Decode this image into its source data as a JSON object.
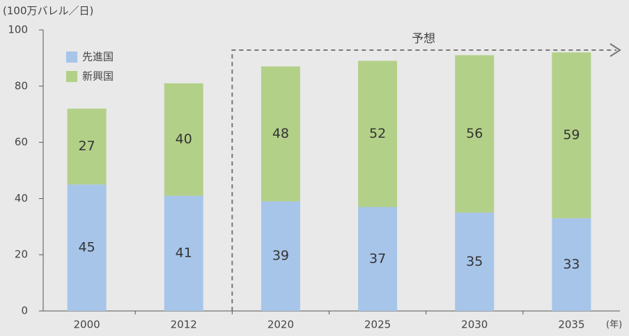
{
  "chart_data": {
    "type": "bar",
    "stacked": true,
    "y_unit": "(100万バレル／日)",
    "x_unit": "(年)",
    "annotation": "予想",
    "categories": [
      "2000",
      "2012",
      "2020",
      "2025",
      "2030",
      "2035"
    ],
    "series": [
      {
        "name": "先進国",
        "color": "#a7c5e9",
        "values": [
          45,
          41,
          39,
          37,
          35,
          33
        ]
      },
      {
        "name": "新興国",
        "color": "#b3d088",
        "values": [
          27,
          40,
          48,
          52,
          56,
          59
        ]
      }
    ],
    "ylim": [
      0,
      100
    ],
    "yticks": [
      0,
      20,
      40,
      60,
      80,
      100
    ],
    "grid": false,
    "legend": "top-left"
  }
}
